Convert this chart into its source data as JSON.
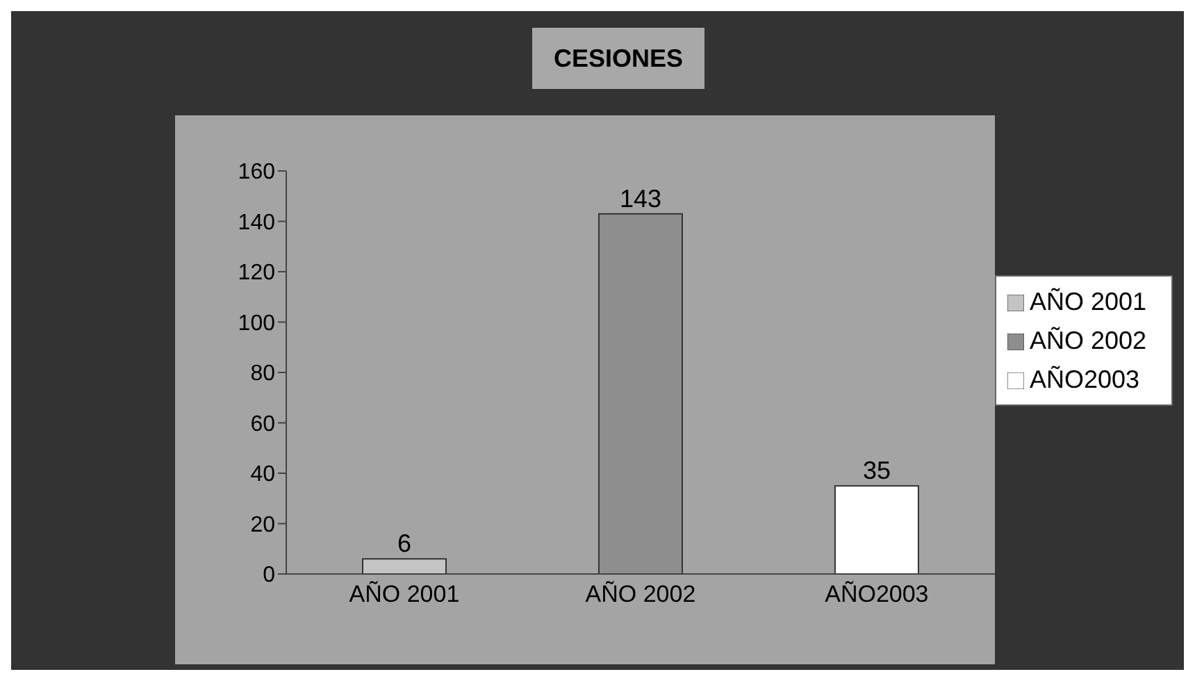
{
  "chart_data": {
    "type": "bar",
    "title": "CESIONES",
    "stacked": true,
    "categories": [
      "AÑO 2001",
      "AÑO 2002",
      "AÑO2003"
    ],
    "series": [
      {
        "name": "AÑO 2001",
        "color": "#c4c4c4",
        "values": [
          6,
          null,
          null
        ]
      },
      {
        "name": "AÑO 2002",
        "color": "#8e8e8e",
        "values": [
          null,
          143,
          null
        ]
      },
      {
        "name": "AÑO2003",
        "color": "#ffffff",
        "values": [
          null,
          null,
          35
        ]
      }
    ],
    "ylim": [
      0,
      160
    ],
    "yticks": [
      0,
      20,
      40,
      60,
      80,
      100,
      120,
      140,
      160
    ],
    "data_labels": true,
    "legend": "right"
  }
}
